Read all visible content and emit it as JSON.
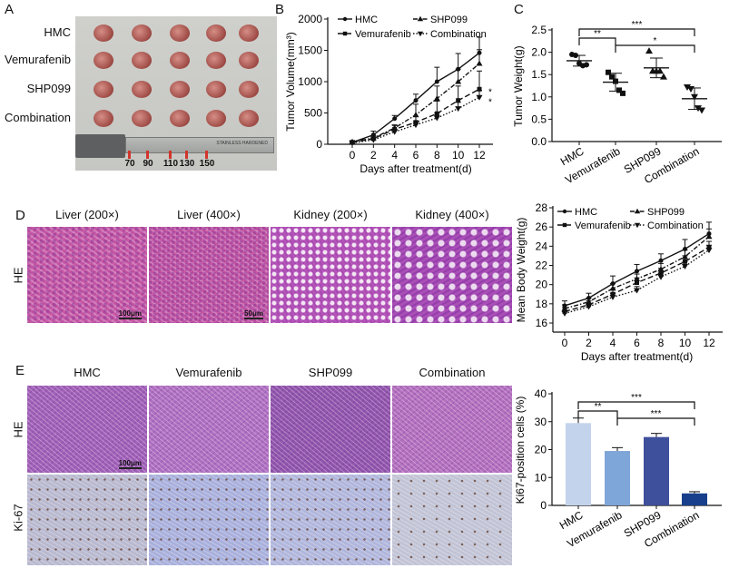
{
  "panel_labels": {
    "a": "A",
    "b": "B",
    "c": "C",
    "d": "D",
    "e": "E"
  },
  "panel_a": {
    "row_labels": [
      "HMC",
      "Vemurafenib",
      "SHP099",
      "Combination"
    ],
    "ruler_marks": [
      "70",
      "90",
      "110",
      "130",
      "150"
    ],
    "ruler_brand": "STAINLESS HARDENED"
  },
  "panel_d_images": {
    "headers": [
      "Liver (200×)",
      "Liver (400×)",
      "Kidney (200×)",
      "Kidney (400×)"
    ],
    "row_label": "HE",
    "scale_bars": [
      "100μm",
      "50μm"
    ]
  },
  "panel_e_images": {
    "headers": [
      "HMC",
      "Vemurafenib",
      "SHP099",
      "Combination"
    ],
    "row_labels": [
      "HE",
      "Ki-67"
    ],
    "scale_bar": "100μm"
  },
  "chart_data": [
    {
      "id": "B",
      "type": "line",
      "xlabel": "Days after treatment(d)",
      "ylabel": "Tumor Volume(mm³)",
      "x": [
        0,
        2,
        4,
        6,
        8,
        10,
        12
      ],
      "xlim": [
        0,
        12
      ],
      "ylim": [
        0,
        2000
      ],
      "yticks": [
        0,
        500,
        1000,
        1500,
        2000
      ],
      "xticks": [
        0,
        2,
        4,
        6,
        8,
        10,
        12
      ],
      "legend": "top",
      "series": [
        {
          "name": "HMC",
          "values": [
            30,
            150,
            410,
            700,
            1000,
            1200,
            1460
          ],
          "errors": [
            20,
            60,
            50,
            100,
            230,
            250,
            250
          ],
          "marker": "circle",
          "dash": "solid"
        },
        {
          "name": "SHP099",
          "values": [
            40,
            100,
            260,
            470,
            730,
            1000,
            1290
          ],
          "errors": [
            20,
            40,
            50,
            170,
            200,
            200,
            220
          ],
          "marker": "triangle",
          "dash": "dashdot"
        },
        {
          "name": "Vemurafenib",
          "values": [
            30,
            90,
            240,
            350,
            490,
            700,
            880
          ],
          "errors": [
            20,
            30,
            60,
            90,
            200,
            230,
            290
          ],
          "marker": "square",
          "dash": "dashed"
        },
        {
          "name": "Combination",
          "values": [
            20,
            70,
            200,
            310,
            420,
            570,
            750
          ],
          "errors": [
            15,
            30,
            40,
            60,
            80,
            100,
            110
          ],
          "marker": "invtriangle",
          "dash": "dotted"
        }
      ],
      "annotations": [
        "*",
        "*"
      ]
    },
    {
      "id": "C",
      "type": "scatter",
      "ylabel": "Tumor Weight(g)",
      "ylim": [
        0,
        2.5
      ],
      "yticks": [
        "0.0",
        "0.5",
        "1.0",
        "1.5",
        "2.0",
        "2.5"
      ],
      "categories": [
        "HMC",
        "Vemurafenib",
        "SHP099",
        "Combination"
      ],
      "points": [
        [
          1.95,
          1.93,
          1.75,
          1.7,
          1.72
        ],
        [
          1.55,
          1.45,
          1.35,
          1.15,
          1.08
        ],
        [
          2.03,
          1.58,
          1.58,
          1.58,
          1.45
        ],
        [
          1.22,
          1.18,
          1.0,
          0.75,
          0.7
        ]
      ],
      "means": [
        1.81,
        1.33,
        1.65,
        0.96
      ],
      "sd": [
        0.12,
        0.2,
        0.22,
        0.24
      ],
      "markers": [
        "circle",
        "square",
        "triangle",
        "invtriangle"
      ],
      "significance": [
        {
          "from": "HMC",
          "to": "Combination",
          "label": "***"
        },
        {
          "from": "HMC",
          "to": "Vemurafenib",
          "label": "**"
        },
        {
          "from": "Vemurafenib",
          "to": "Combination",
          "label": "*"
        }
      ]
    },
    {
      "id": "D",
      "type": "line",
      "xlabel": "Days after treatment(d)",
      "ylabel": "Mean Body Weight(g)",
      "x": [
        0,
        2,
        4,
        6,
        8,
        10,
        12
      ],
      "xlim": [
        0,
        12
      ],
      "ylim": [
        15,
        28
      ],
      "yticks": [
        16,
        18,
        20,
        22,
        24,
        26,
        28
      ],
      "xticks": [
        0,
        2,
        4,
        6,
        8,
        10,
        12
      ],
      "legend": "top",
      "series": [
        {
          "name": "HMC",
          "values": [
            17.8,
            18.6,
            20.1,
            21.4,
            22.5,
            23.7,
            25.3
          ],
          "errors": [
            0.5,
            0.5,
            0.8,
            0.7,
            0.7,
            1.0,
            1.2
          ],
          "marker": "circle",
          "dash": "solid"
        },
        {
          "name": "SHP099",
          "values": [
            17.5,
            18.2,
            19.6,
            20.6,
            21.6,
            22.9,
            25.0
          ],
          "errors": [
            0.4,
            0.4,
            0.5,
            0.5,
            0.6,
            0.7,
            0.8
          ],
          "marker": "triangle",
          "dash": "dashdot"
        },
        {
          "name": "Vemurafenib",
          "values": [
            17.2,
            17.9,
            19.0,
            20.2,
            21.2,
            22.4,
            23.9
          ],
          "errors": [
            0.4,
            0.4,
            0.5,
            0.5,
            0.5,
            0.6,
            0.6
          ],
          "marker": "square",
          "dash": "dashed"
        },
        {
          "name": "Combination",
          "values": [
            17.0,
            17.7,
            18.7,
            19.4,
            20.8,
            21.9,
            23.6
          ],
          "errors": [
            0.3,
            0.3,
            0.4,
            0.4,
            0.4,
            0.5,
            0.5
          ],
          "marker": "invtriangle",
          "dash": "dotted"
        }
      ]
    },
    {
      "id": "E",
      "type": "bar",
      "ylabel": "Ki67-position cells (%)",
      "ylim": [
        0,
        40
      ],
      "yticks": [
        0,
        10,
        20,
        30,
        40
      ],
      "categories": [
        "HMC",
        "Vemurafenib",
        "SHP099",
        "Combination"
      ],
      "values": [
        29.5,
        19.5,
        24.5,
        4.3
      ],
      "errors": [
        1.8,
        1.2,
        1.3,
        0.6
      ],
      "colors": [
        "#c3d3ec",
        "#7fa6d8",
        "#3e4f9c",
        "#173f8c"
      ],
      "significance": [
        {
          "from": "HMC",
          "to": "Combination",
          "label": "***"
        },
        {
          "from": "HMC",
          "to": "Vemurafenib",
          "label": "**"
        },
        {
          "from": "Vemurafenib",
          "to": "Combination",
          "label": "***"
        }
      ]
    }
  ]
}
